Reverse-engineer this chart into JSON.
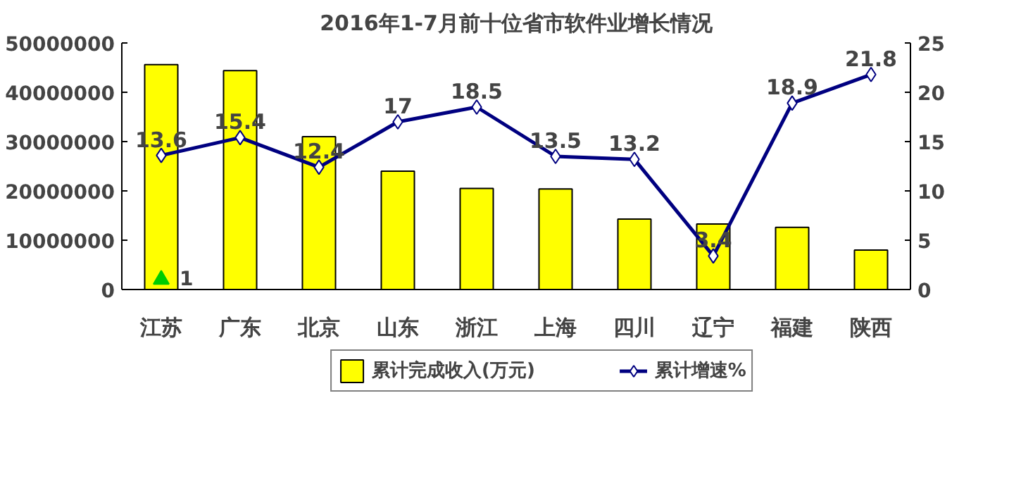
{
  "chart_data": {
    "type": "bar",
    "title": "2016年1-7月前十位省市软件业增长情况",
    "categories": [
      "江苏",
      "广东",
      "北京",
      "山东",
      "浙江",
      "上海",
      "四川",
      "辽宁",
      "福建",
      "陕西"
    ],
    "series": [
      {
        "name": "累计完成收入(万元)",
        "color": "#ffff00",
        "values": [
          45600000,
          44400000,
          31000000,
          24000000,
          20500000,
          20400000,
          14300000,
          13300000,
          12600000,
          8000000
        ]
      },
      {
        "name": "累计增速%",
        "type": "line",
        "axis": "y2",
        "color": "#000080",
        "marker": "diamond",
        "data_labels": true,
        "values": [
          13.6,
          15.4,
          12.4,
          17,
          18.5,
          13.5,
          13.2,
          3.4,
          18.9,
          21.8
        ]
      },
      {
        "type": "scatter",
        "axis": "y2",
        "color": "#00cc00",
        "marker": "triangle",
        "data_labels": true,
        "values": [
          1,
          null,
          null,
          null,
          null,
          null,
          null,
          null,
          null,
          null
        ]
      }
    ],
    "ylim": [
      0,
      50000000
    ],
    "yticks": [
      0,
      10000000,
      20000000,
      30000000,
      40000000,
      50000000
    ],
    "y2lim": [
      0,
      25
    ],
    "y2ticks": [
      0,
      5,
      10,
      15,
      20,
      25
    ],
    "grid": false,
    "legend": "bottom"
  }
}
